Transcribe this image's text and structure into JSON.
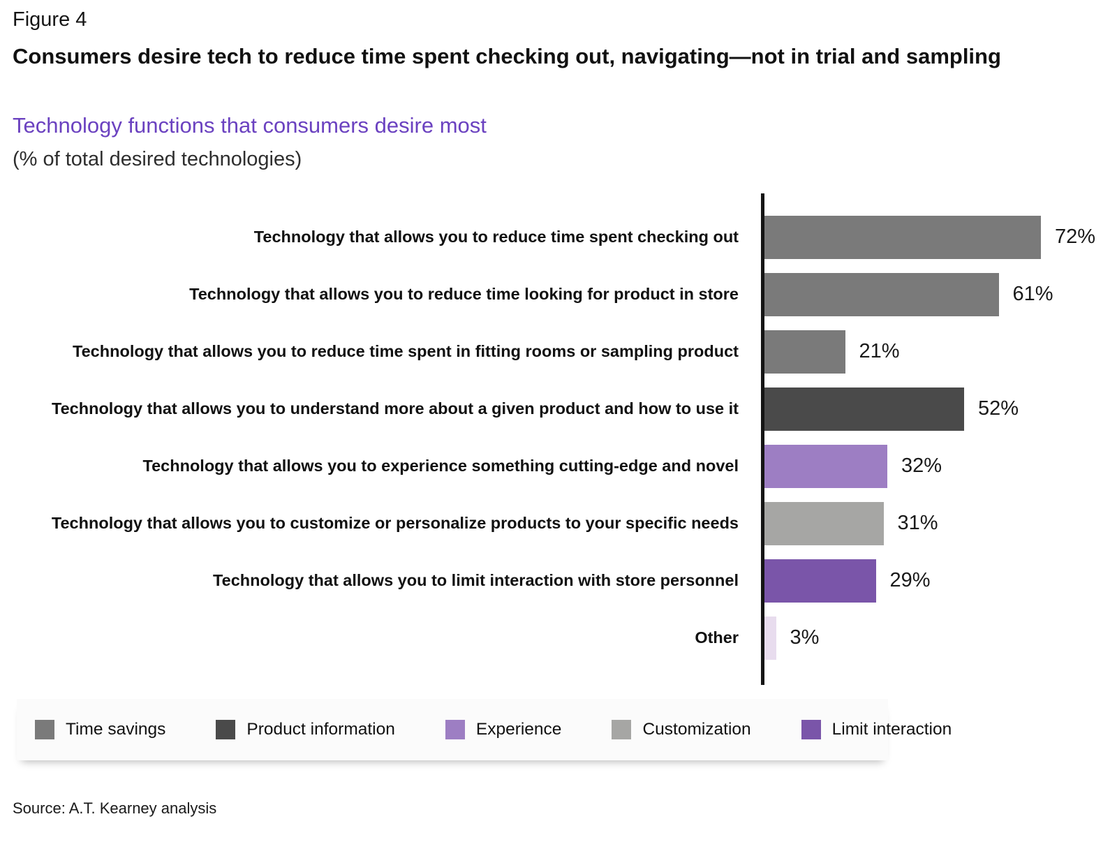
{
  "figure_label": "Figure 4",
  "title": "Consumers desire tech to reduce time spent checking out, navigating—not in trial and sampling",
  "subtitle": "Technology functions that consumers desire most",
  "unit_note": "(% of total desired technologies)",
  "source": "Source: A.T. Kearney analysis",
  "colors": {
    "subtitle_purple": "#6b42c0",
    "axis": "#151515",
    "time_savings": "#7a7a7a",
    "product_information": "#4a4a4a",
    "experience": "#9d7ec3",
    "customization": "#a6a6a4",
    "limit_interaction": "#7a55a9",
    "other": "#e8dcee",
    "legend_background": "#fbfbfb"
  },
  "chart_data": {
    "type": "bar",
    "orientation": "horizontal",
    "title": "Technology functions that consumers desire most",
    "xlabel": "% of total desired technologies",
    "ylabel": "",
    "xlim": [
      0,
      92
    ],
    "grid": false,
    "legend_position": "bottom",
    "categories": [
      "Technology that allows you to reduce time spent checking out",
      "Technology that allows you to reduce time looking for product in store",
      "Technology that allows you to reduce time spent in fitting rooms or sampling product",
      "Technology that allows you to understand more about a given product and how to use it",
      "Technology that allows you to experience something cutting-edge and novel",
      "Technology that allows you to customize or personalize products to your specific needs",
      "Technology that allows you to limit interaction with store personnel",
      "Other"
    ],
    "values": [
      72,
      61,
      21,
      52,
      32,
      31,
      29,
      3
    ],
    "value_labels": [
      "72%",
      "61%",
      "21%",
      "52%",
      "32%",
      "31%",
      "29%",
      "3%"
    ],
    "bar_series": [
      "Time savings",
      "Time savings",
      "Time savings",
      "Product information",
      "Experience",
      "Customization",
      "Limit interaction",
      "Other"
    ],
    "bar_colors": [
      "#7a7a7a",
      "#7a7a7a",
      "#7a7a7a",
      "#4a4a4a",
      "#9d7ec3",
      "#a6a6a4",
      "#7a55a9",
      "#e8dcee"
    ]
  },
  "legend": {
    "items": [
      {
        "label": "Time savings",
        "color": "#7a7a7a"
      },
      {
        "label": "Product information",
        "color": "#4a4a4a"
      },
      {
        "label": "Experience",
        "color": "#9d7ec3"
      },
      {
        "label": "Customization",
        "color": "#a6a6a4"
      },
      {
        "label": "Limit interaction",
        "color": "#7a55a9"
      }
    ]
  }
}
